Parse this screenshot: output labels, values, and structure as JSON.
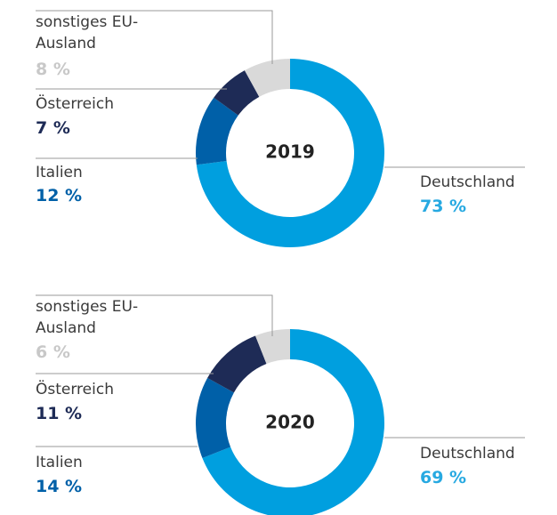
{
  "chart_data": [
    {
      "type": "donut",
      "center_label": "2019",
      "categories": [
        "Deutschland",
        "Italien",
        "Österreich",
        "sonstiges EU-Ausland"
      ],
      "values": [
        73,
        12,
        7,
        8
      ],
      "value_labels": [
        "73 %",
        "12 %",
        "7 %",
        "8 %"
      ],
      "colors": [
        "#009fdf",
        "#0060a8",
        "#1e2b56",
        "#d9d9d9"
      ],
      "label_colors": [
        "#27a9e1",
        "#0060a8",
        "#1e2b56",
        "#c8c8c8"
      ]
    },
    {
      "type": "donut",
      "center_label": "2020",
      "categories": [
        "Deutschland",
        "Italien",
        "Österreich",
        "sonstiges EU-Ausland"
      ],
      "values": [
        69,
        14,
        11,
        6
      ],
      "value_labels": [
        "69 %",
        "14 %",
        "11 %",
        "6 %"
      ],
      "colors": [
        "#009fdf",
        "#0060a8",
        "#1e2b56",
        "#d9d9d9"
      ],
      "label_colors": [
        "#27a9e1",
        "#0060a8",
        "#1e2b56",
        "#c8c8c8"
      ]
    }
  ]
}
